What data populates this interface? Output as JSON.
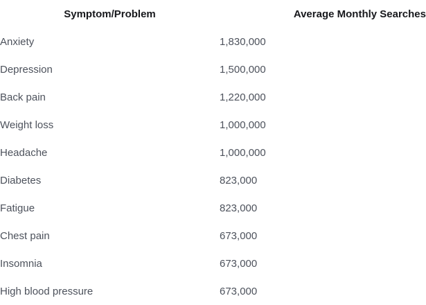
{
  "colors": {
    "background": "#ffffff",
    "header_text": "#17181c",
    "body_text": "#4d525c"
  },
  "table": {
    "headers": {
      "symptom": "Symptom/Problem",
      "searches": "Average Monthly Searches"
    },
    "rows": [
      {
        "symptom": "Anxiety",
        "searches": "1,830,000"
      },
      {
        "symptom": "Depression",
        "searches": "1,500,000"
      },
      {
        "symptom": "Back pain",
        "searches": "1,220,000"
      },
      {
        "symptom": "Weight loss",
        "searches": "1,000,000"
      },
      {
        "symptom": "Headache",
        "searches": "1,000,000"
      },
      {
        "symptom": "Diabetes",
        "searches": "823,000"
      },
      {
        "symptom": "Fatigue",
        "searches": "823,000"
      },
      {
        "symptom": "Chest pain",
        "searches": "673,000"
      },
      {
        "symptom": "Insomnia",
        "searches": "673,000"
      },
      {
        "symptom": "High blood pressure",
        "searches": "673,000"
      }
    ]
  },
  "chart_data": {
    "type": "table",
    "title": "",
    "columns": [
      "Symptom/Problem",
      "Average Monthly Searches"
    ],
    "categories": [
      "Anxiety",
      "Depression",
      "Back pain",
      "Weight loss",
      "Headache",
      "Diabetes",
      "Fatigue",
      "Chest pain",
      "Insomnia",
      "High blood pressure"
    ],
    "values": [
      1830000,
      1500000,
      1220000,
      1000000,
      1000000,
      823000,
      823000,
      673000,
      673000,
      673000
    ],
    "layout": {
      "grid": false,
      "borders": false,
      "value_format": "thousands-separated"
    }
  }
}
